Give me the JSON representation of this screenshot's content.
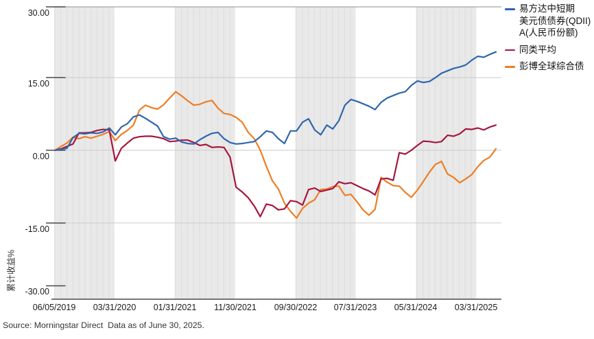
{
  "chart_data": {
    "type": "line",
    "title": "",
    "ylabel": "累计收益%",
    "xlabel": "",
    "ylim": [
      -30,
      30
    ],
    "grid": "horizontal",
    "legend_position": "top-right",
    "y_ticks": [
      "30.00",
      "15.00",
      "0.00",
      "-15.00",
      "-30.00"
    ],
    "y_tick_values": [
      30,
      15,
      0,
      -15,
      -30
    ],
    "x_tick_labels": [
      "06/05/2019",
      "03/31/2020",
      "01/31/2021",
      "11/30/2021",
      "09/30/2022",
      "07/31/2023",
      "05/31/2024",
      "03/31/2025"
    ],
    "dates": [
      "06/05/2019",
      "06/30/2019",
      "07/31/2019",
      "08/31/2019",
      "09/30/2019",
      "10/31/2019",
      "11/30/2019",
      "12/31/2019",
      "01/31/2020",
      "02/29/2020",
      "03/31/2020",
      "04/30/2020",
      "05/31/2020",
      "06/30/2020",
      "07/31/2020",
      "08/31/2020",
      "09/30/2020",
      "10/31/2020",
      "11/30/2020",
      "12/31/2020",
      "01/31/2021",
      "02/28/2021",
      "03/31/2021",
      "04/30/2021",
      "05/31/2021",
      "06/30/2021",
      "07/31/2021",
      "08/31/2021",
      "09/30/2021",
      "10/31/2021",
      "11/30/2021",
      "12/31/2021",
      "01/31/2022",
      "02/28/2022",
      "03/31/2022",
      "04/30/2022",
      "05/31/2022",
      "06/30/2022",
      "07/31/2022",
      "08/31/2022",
      "09/30/2022",
      "10/31/2022",
      "11/30/2022",
      "12/31/2022",
      "01/31/2023",
      "02/28/2023",
      "03/31/2023",
      "04/30/2023",
      "05/31/2023",
      "06/30/2023",
      "07/31/2023",
      "08/31/2023",
      "09/30/2023",
      "10/31/2023",
      "11/30/2023",
      "12/31/2023",
      "01/31/2024",
      "02/29/2024",
      "03/31/2024",
      "04/30/2024",
      "05/31/2024",
      "06/30/2024",
      "07/31/2024",
      "08/31/2024",
      "09/30/2024",
      "10/31/2024",
      "11/30/2024",
      "12/31/2024",
      "01/31/2025",
      "02/28/2025",
      "03/31/2025",
      "04/30/2025",
      "05/31/2025",
      "06/30/2025"
    ],
    "series": [
      {
        "name": "易方达中短期美元债债券(QDII)A(人民币份额)",
        "color": "#2e66ad",
        "values": [
          0,
          0.2,
          0.4,
          2.6,
          3.5,
          3.4,
          3.6,
          3.5,
          3.8,
          4.6,
          3.2,
          4.8,
          5.5,
          6.9,
          7.3,
          6.6,
          5.8,
          5.0,
          2.8,
          2.3,
          2.5,
          1.7,
          1.4,
          1.3,
          2.2,
          2.9,
          3.5,
          3.7,
          2.4,
          1.6,
          1.3,
          1.4,
          1.6,
          1.8,
          2.8,
          4.0,
          3.7,
          2.4,
          1.4,
          4.0,
          4.0,
          5.8,
          6.5,
          4.2,
          3.2,
          5.2,
          4.4,
          6.1,
          9.3,
          10.5,
          10.1,
          9.6,
          9.1,
          8.4,
          9.9,
          10.8,
          11.3,
          11.8,
          12.1,
          13.4,
          14.3,
          14.0,
          14.2,
          15.0,
          15.9,
          16.4,
          16.9,
          17.2,
          17.6,
          18.6,
          19.4,
          19.2,
          19.8,
          20.3
        ]
      },
      {
        "name": "同类平均",
        "color": "#a5173f",
        "values": [
          0,
          0.3,
          0.8,
          1.3,
          3.6,
          3.6,
          3.7,
          4.1,
          4.3,
          4.2,
          -2.2,
          0.4,
          1.5,
          2.5,
          2.8,
          2.9,
          2.9,
          2.7,
          2.4,
          1.8,
          1.9,
          2.1,
          2.1,
          1.6,
          1.0,
          1.2,
          0.6,
          0.7,
          0.6,
          -1.4,
          -7.6,
          -8.6,
          -9.8,
          -11.5,
          -13.7,
          -11.1,
          -11.4,
          -12.3,
          -12.1,
          -10.4,
          -10.6,
          -11.3,
          -8.1,
          -7.8,
          -8.5,
          -8.2,
          -7.9,
          -6.5,
          -6.9,
          -6.7,
          -7.3,
          -7.9,
          -8.4,
          -9.2,
          -5.9,
          -5.8,
          -6.2,
          -0.5,
          -0.8,
          0.0,
          1.0,
          1.9,
          1.8,
          1.6,
          1.8,
          3.1,
          2.9,
          3.4,
          4.4,
          4.3,
          4.6,
          4.2,
          4.8,
          5.2
        ]
      },
      {
        "name": "彭博全球综合债",
        "color": "#ee7d23",
        "values": [
          0,
          0.8,
          1.5,
          2.7,
          2.4,
          2.8,
          2.5,
          2.9,
          3.3,
          3.9,
          2.0,
          3.3,
          4.1,
          5.2,
          8.3,
          9.3,
          8.8,
          8.5,
          9.4,
          10.8,
          12.1,
          11.2,
          10.2,
          9.3,
          9.5,
          10.0,
          10.3,
          8.7,
          7.6,
          7.4,
          6.8,
          5.8,
          3.7,
          2.4,
          0.0,
          -3.3,
          -6.3,
          -8.0,
          -10.9,
          -12.6,
          -14.0,
          -12.0,
          -10.9,
          -10.2,
          -8.1,
          -8.0,
          -7.5,
          -7.4,
          -9.3,
          -9.1,
          -10.6,
          -12.3,
          -13.4,
          -12.2,
          -5.6,
          -6.6,
          -7.3,
          -7.4,
          -8.7,
          -9.7,
          -8.2,
          -6.4,
          -4.5,
          -2.9,
          -2.3,
          -4.9,
          -5.6,
          -6.7,
          -5.9,
          -5.0,
          -3.4,
          -2.1,
          -1.4,
          0.3
        ]
      }
    ]
  },
  "legend": {
    "items": [
      {
        "label": "易方达中短期美元债债券(QDII)A(人民币份额)",
        "lines": [
          "易方达中短期",
          "美元债债券(QDII)",
          "A(人民币份额)"
        ],
        "color": "#2e66ad"
      },
      {
        "label": "同类平均",
        "lines": [
          "同类平均"
        ],
        "color": "#a5173f"
      },
      {
        "label": "彭博全球综合债",
        "lines": [
          "彭博全球综合债"
        ],
        "color": "#ee7d23"
      }
    ]
  },
  "footer": {
    "source": "Source: Morningstar Direct  Data as of June 30, 2025."
  },
  "colors": {
    "band": "#e9e9e9",
    "band_stripe": "#dfdfdf",
    "gridline": "#cbcbcb",
    "top_border": "#a3a3a3",
    "axis_line": "#4a4a4a",
    "text": "#1a1a1a"
  }
}
